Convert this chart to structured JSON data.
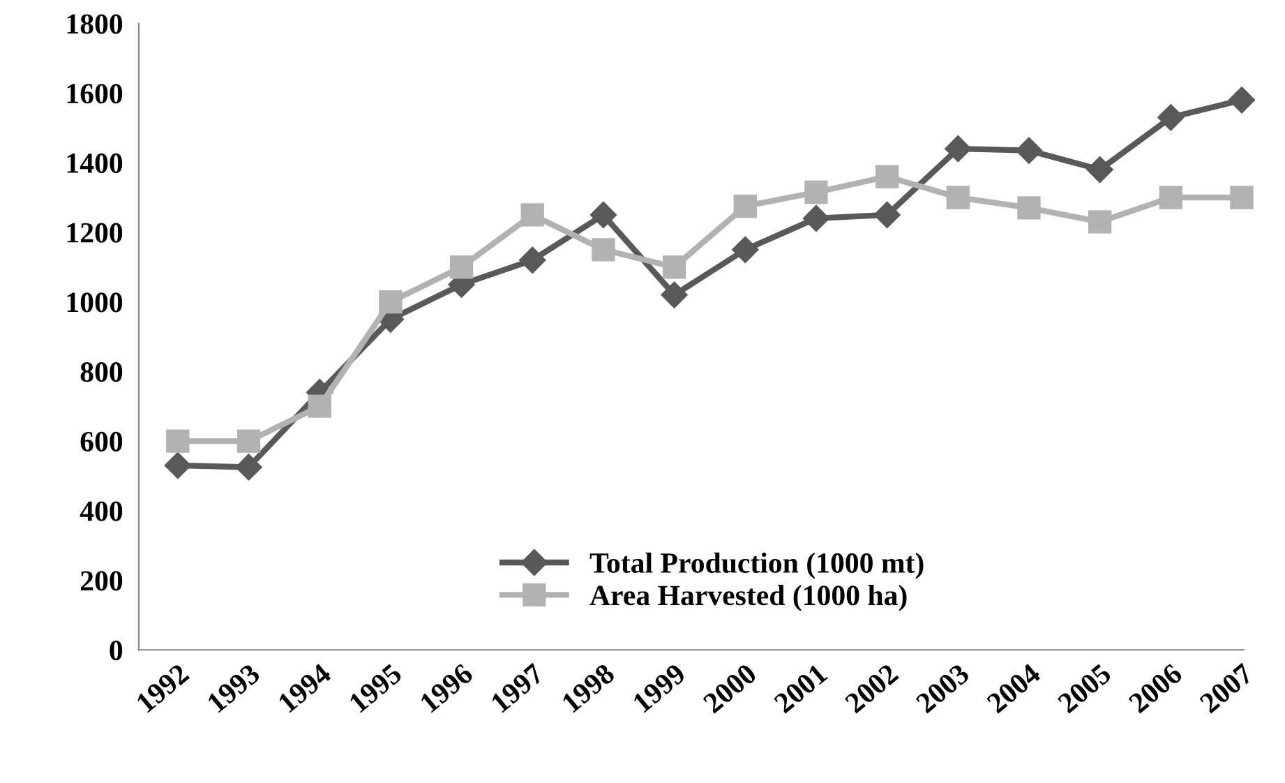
{
  "chart_data": {
    "type": "line",
    "categories": [
      "1992",
      "1993",
      "1994",
      "1995",
      "1996",
      "1997",
      "1998",
      "1999",
      "2000",
      "2001",
      "2002",
      "2003",
      "2004",
      "2005",
      "2006",
      "2007"
    ],
    "series": [
      {
        "name": "Total Production (1000 mt)",
        "color": "#595959",
        "marker": "diamond",
        "values": [
          530,
          525,
          740,
          950,
          1050,
          1120,
          1250,
          1020,
          1150,
          1240,
          1250,
          1440,
          1435,
          1380,
          1530,
          1580
        ]
      },
      {
        "name": "Area Harvested (1000 ha)",
        "color": "#b2b2b2",
        "marker": "square",
        "values": [
          600,
          600,
          700,
          1000,
          1100,
          1250,
          1150,
          1100,
          1275,
          1315,
          1360,
          1300,
          1270,
          1230,
          1300,
          1300
        ]
      }
    ],
    "ylim": [
      0,
      1800
    ],
    "yticks": [
      0,
      200,
      400,
      600,
      800,
      1000,
      1200,
      1400,
      1600,
      1800
    ],
    "grid": false,
    "legend": "bottom",
    "line_style": "solid"
  }
}
